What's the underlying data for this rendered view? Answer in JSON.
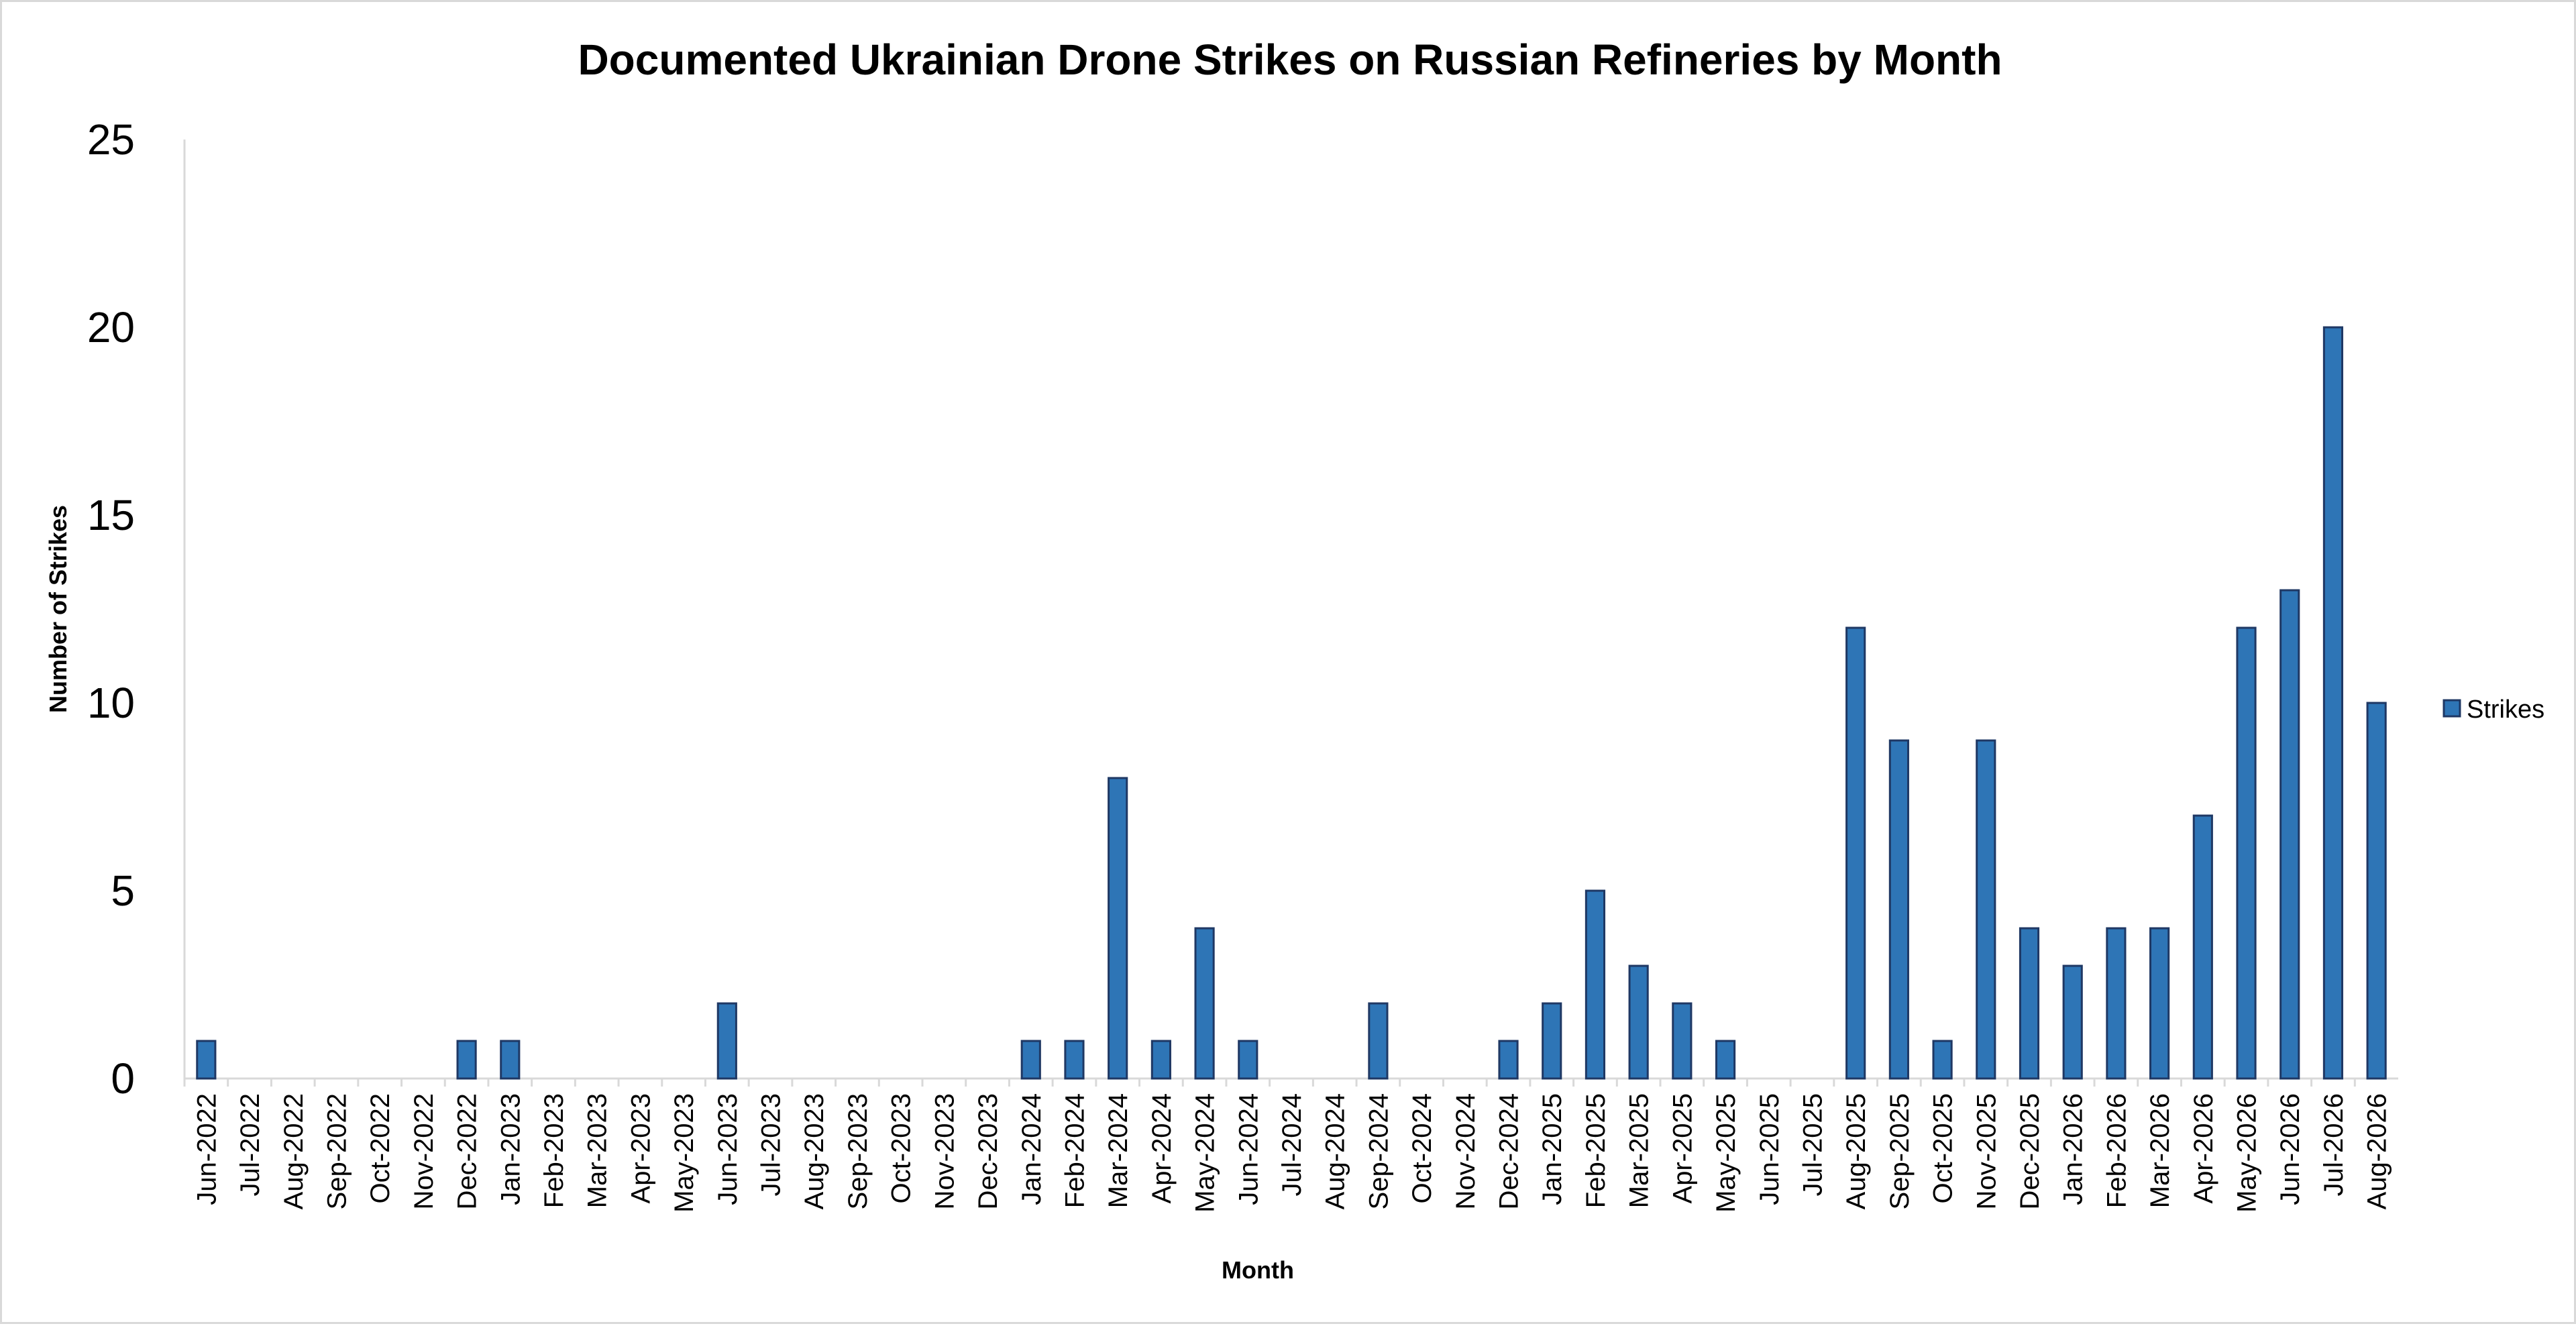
{
  "chart_data": {
    "type": "bar",
    "title": "Documented Ukrainian Drone Strikes on Russian Refineries by Month",
    "xlabel": "Month",
    "ylabel": "Number of Strikes",
    "ylim": [
      0,
      25
    ],
    "yticks": [
      0,
      5,
      10,
      15,
      20,
      25
    ],
    "grid": false,
    "legend_position": "right",
    "bar_color": "#2e75b6",
    "bar_edge_color": "#1f3864",
    "categories": [
      "Jun-2022",
      "Jul-2022",
      "Aug-2022",
      "Sep-2022",
      "Oct-2022",
      "Nov-2022",
      "Dec-2022",
      "Jan-2023",
      "Feb-2023",
      "Mar-2023",
      "Apr-2023",
      "May-2023",
      "Jun-2023",
      "Jul-2023",
      "Aug-2023",
      "Sep-2023",
      "Oct-2023",
      "Nov-2023",
      "Dec-2023",
      "Jan-2024",
      "Feb-2024",
      "Mar-2024",
      "Apr-2024",
      "May-2024",
      "Jun-2024",
      "Jul-2024",
      "Aug-2024",
      "Sep-2024",
      "Oct-2024",
      "Nov-2024",
      "Dec-2024",
      "Jan-2025",
      "Feb-2025",
      "Mar-2025",
      "Apr-2025",
      "May-2025",
      "Jun-2025",
      "Jul-2025",
      "Aug-2025",
      "Sep-2025",
      "Oct-2025",
      "Nov-2025",
      "Dec-2025",
      "Jan-2026",
      "Feb-2026",
      "Mar-2026",
      "Apr-2026",
      "May-2026",
      "Jun-2026",
      "Jul-2026",
      "Aug-2026"
    ],
    "series": [
      {
        "name": "Strikes",
        "values": [
          1,
          0,
          0,
          0,
          0,
          0,
          1,
          1,
          0,
          0,
          0,
          0,
          2,
          0,
          0,
          0,
          0,
          0,
          0,
          1,
          1,
          8,
          1,
          4,
          1,
          0,
          0,
          2,
          0,
          0,
          1,
          2,
          5,
          3,
          2,
          1,
          0,
          0,
          12,
          9,
          1,
          9,
          4,
          3,
          4,
          4,
          7,
          12,
          13,
          20,
          10
        ]
      }
    ]
  }
}
